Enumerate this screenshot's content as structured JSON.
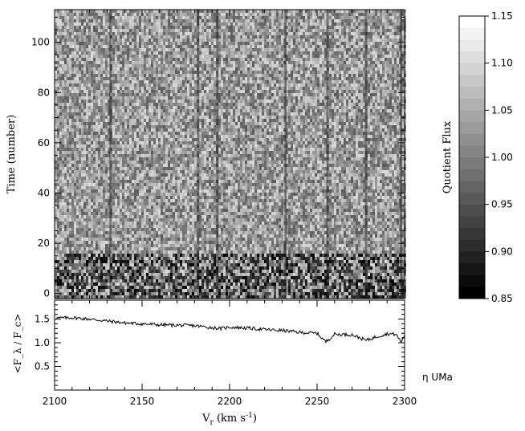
{
  "chart_data": [
    {
      "type": "heatmap",
      "xlabel": "V_r (km s^-1)",
      "ylabel": "Time (number)",
      "xlim": [
        2100,
        2300
      ],
      "ylim": [
        -2,
        113
      ],
      "x_ticks": [
        2100,
        2150,
        2200,
        2250,
        2300
      ],
      "y_ticks": [
        0,
        20,
        40,
        60,
        80,
        100
      ],
      "colormap": "grayscale",
      "colorbar": {
        "label": "Quotient Flux",
        "range": [
          0.85,
          1.15
        ],
        "ticks": [
          "1.15",
          "1.10",
          "1.05",
          "1.00",
          "0.95",
          "0.90",
          "0.85"
        ]
      },
      "absorption_features_x": [
        2132,
        2182,
        2193,
        2232,
        2256,
        2278,
        2298
      ]
    },
    {
      "type": "line",
      "xlabel": "V_r (km s^-1)",
      "ylabel": "<F_λ / F_c>",
      "xlim": [
        2100,
        2300
      ],
      "ylim": [
        0,
        1.9
      ],
      "y_ticks": [
        "0.5",
        "1.0",
        "1.5"
      ],
      "x_ticklabels": [
        "2100",
        "2150",
        "2200",
        "2250",
        "2300"
      ],
      "series": [
        {
          "x": [
            2100,
            2110,
            2120,
            2130,
            2140,
            2150,
            2160,
            2170,
            2180,
            2190,
            2195,
            2200,
            2210,
            2220,
            2230,
            2240,
            2250,
            2255,
            2260,
            2270,
            2278,
            2285,
            2290,
            2295,
            2298,
            2300
          ],
          "y": [
            1.52,
            1.53,
            1.5,
            1.46,
            1.42,
            1.4,
            1.38,
            1.37,
            1.36,
            1.32,
            1.3,
            1.33,
            1.31,
            1.28,
            1.26,
            1.22,
            1.2,
            1.02,
            1.18,
            1.17,
            1.05,
            1.14,
            1.19,
            1.18,
            1.02,
            1.16
          ]
        }
      ]
    }
  ],
  "annotation": "η UMa"
}
